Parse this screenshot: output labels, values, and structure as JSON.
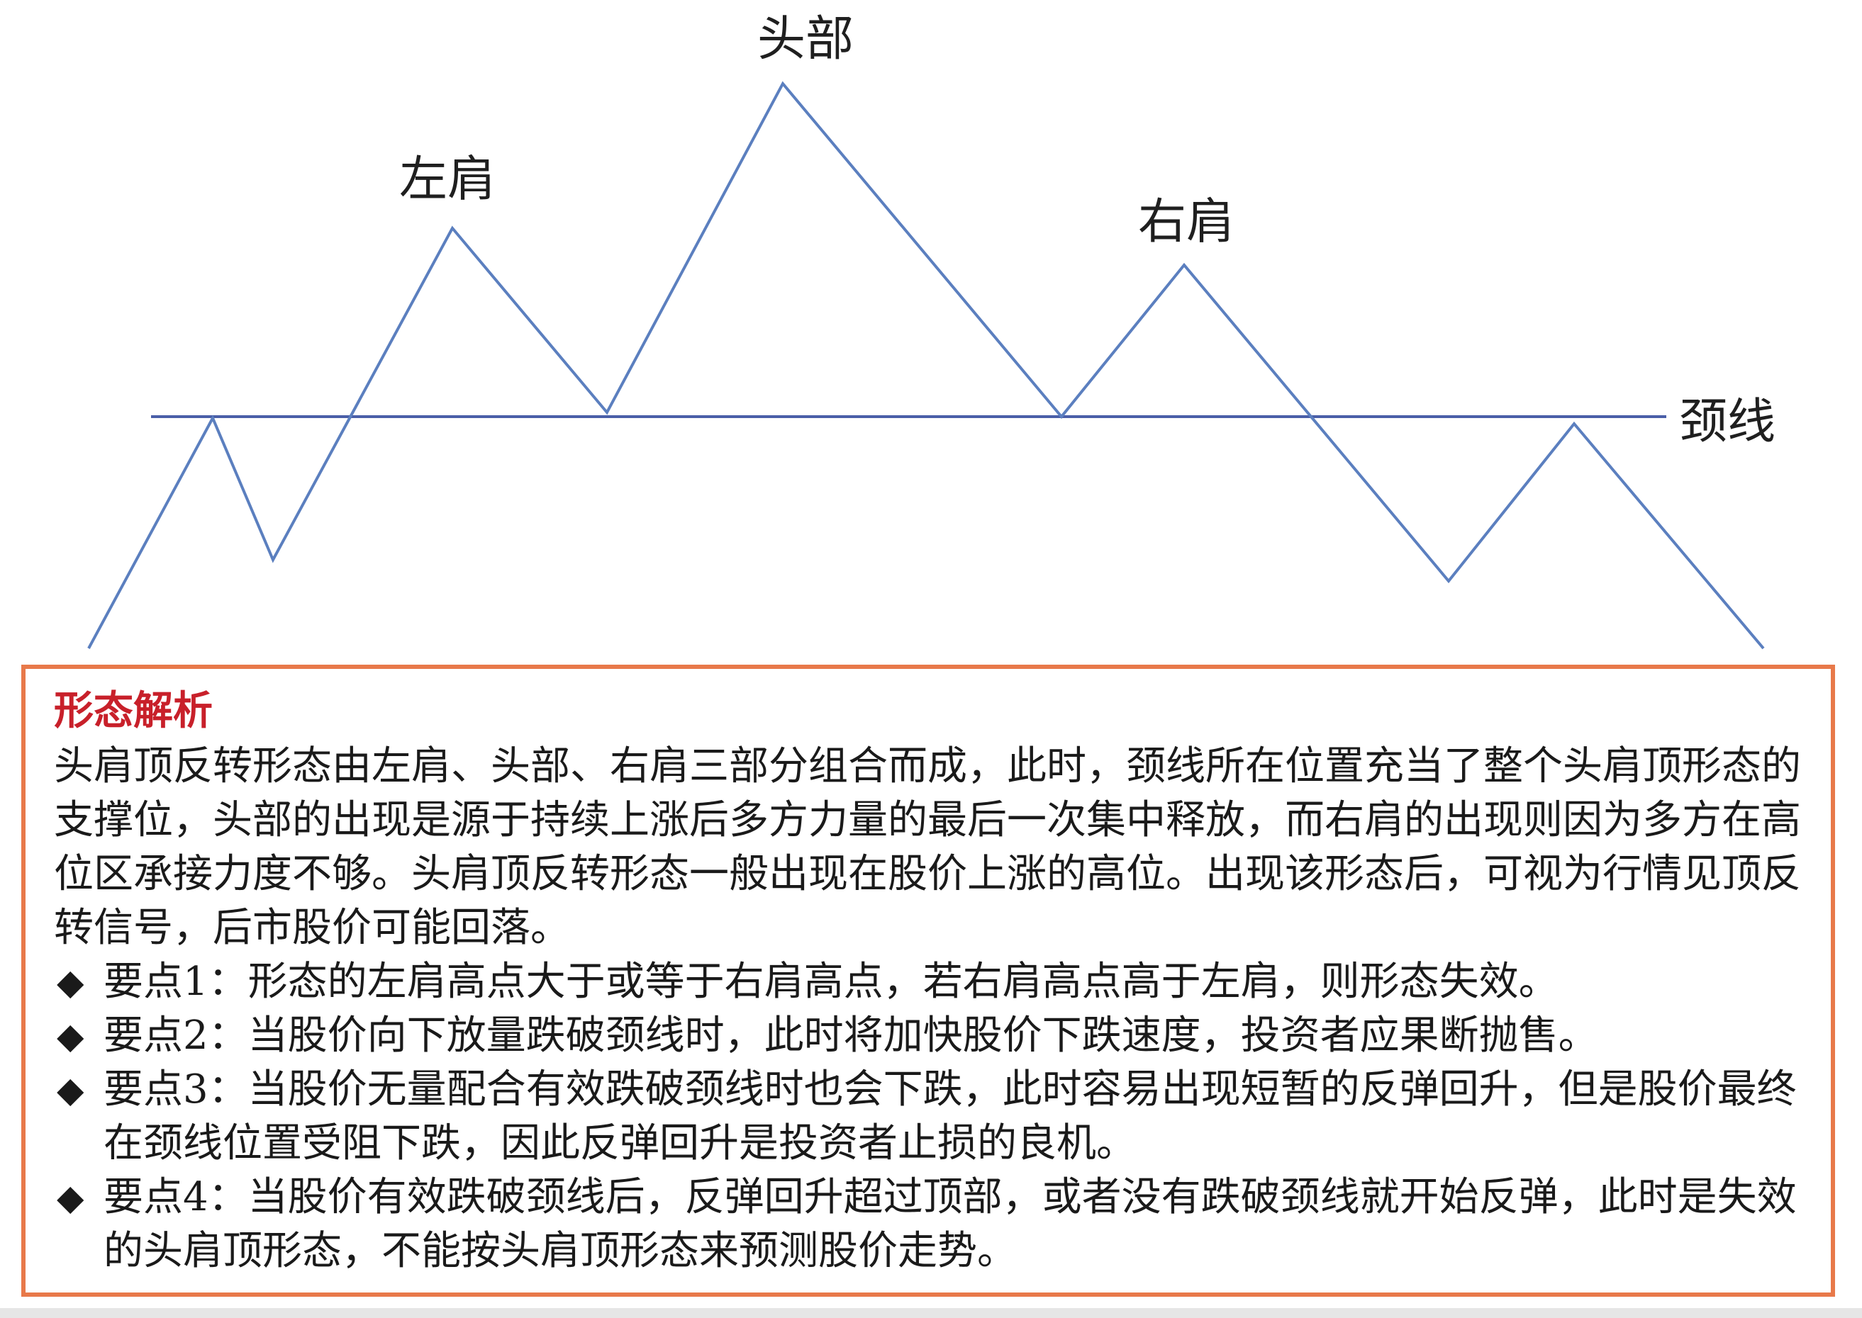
{
  "diagram": {
    "labels": {
      "head": "头部",
      "left_shoulder": "左肩",
      "right_shoulder": "右肩",
      "neckline": "颈线"
    },
    "colors": {
      "line": "#5b7fbf",
      "neckline": "#4a5fa8"
    }
  },
  "analysis": {
    "title": "形态解析",
    "body": "头肩顶反转形态由左肩、头部、右肩三部分组合而成，此时，颈线所在位置充当了整个头肩顶形态的支撑位，头部的出现是源于持续上涨后多方力量的最后一次集中释放，而右肩的出现则因为多方在高位区承接力度不够。头肩顶反转形态一般出现在股价上涨的高位。出现该形态后，可视为行情见顶反转信号，后市股价可能回落。",
    "bullet_symbol": "◆",
    "points": [
      "要点1：形态的左肩高点大于或等于右肩高点，若右肩高点高于左肩，则形态失效。",
      "要点2：当股价向下放量跌破颈线时，此时将加快股价下跌速度，投资者应果断抛售。",
      "要点3：当股价无量配合有效跌破颈线时也会下跌，此时容易出现短暂的反弹回升，但是股价最终在颈线位置受阻下跌，因此反弹回升是投资者止损的良机。",
      "要点4：当股价有效跌破颈线后，反弹回升超过顶部，或者没有跌破颈线就开始反弹，此时是失效的头肩顶形态，不能按头肩顶形态来预测股价走势。"
    ],
    "border_color": "#e8794a",
    "title_color": "#c8202a"
  }
}
